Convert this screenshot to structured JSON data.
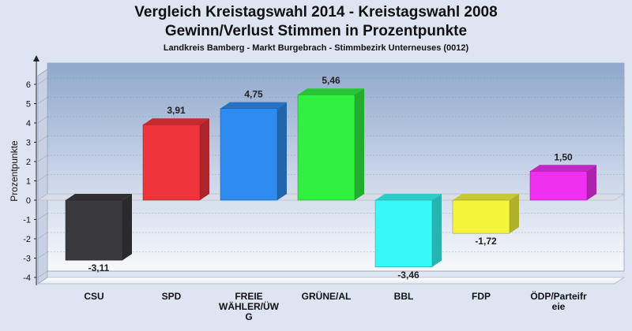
{
  "chart_data": {
    "type": "bar",
    "title": "Vergleich Kreistagswahl 2014 - Kreistagswahl 2008",
    "subtitle": "Gewinn/Verlust Stimmen in Prozentpunkte",
    "caption": "Landkreis Bamberg - Markt Burgebrach - Stimmbezirk Unterneuses (0012)",
    "ylabel": "Prozentpunkte",
    "xlabel": "",
    "ylim": [
      -4.5,
      6.5
    ],
    "yticks": [
      6,
      5,
      4,
      3,
      2,
      1,
      0,
      -1,
      -2,
      -3,
      -4
    ],
    "grid": true,
    "categories": [
      [
        "CSU"
      ],
      [
        "SPD"
      ],
      [
        "FREIE",
        "WÄHLER/ÜW",
        "G"
      ],
      [
        "GRÜNE/AL"
      ],
      [
        "BBL"
      ],
      [
        "FDP"
      ],
      [
        "ÖDP/Parteifr",
        "eie"
      ]
    ],
    "values": [
      -3.11,
      3.91,
      4.75,
      5.46,
      -3.46,
      -1.72,
      1.5
    ],
    "value_labels": [
      "-3,11",
      "3,91",
      "4,75",
      "5,46",
      "-3,46",
      "-1,72",
      "1,50"
    ],
    "colors": [
      "#3a3a3e",
      "#f0343c",
      "#2e8cf0",
      "#30f040",
      "#38f8f8",
      "#f4f43c",
      "#f030f0"
    ]
  }
}
